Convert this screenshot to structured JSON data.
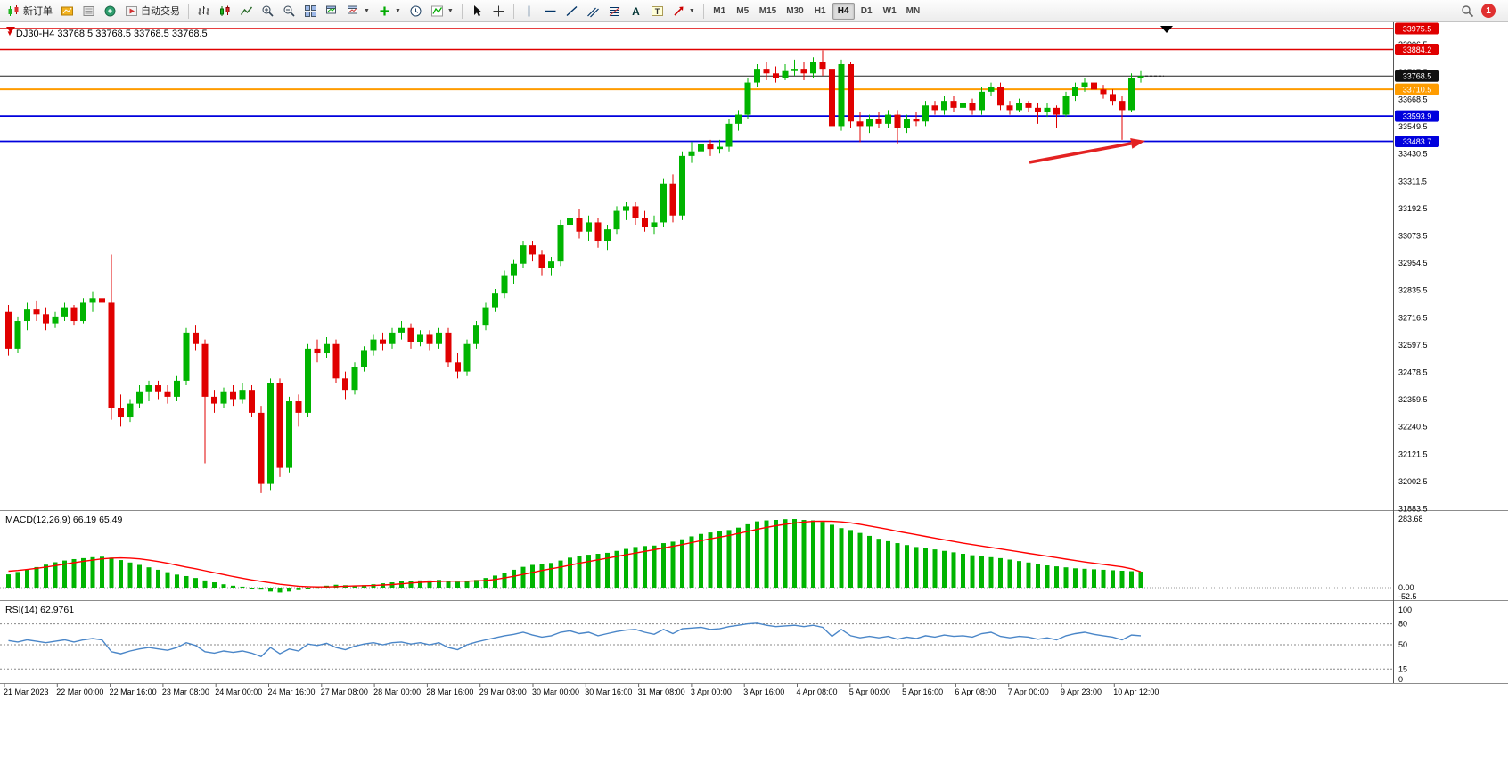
{
  "toolbar": {
    "new_order_label": "新订单",
    "autotrading_label": "自动交易",
    "timeframes": [
      "M1",
      "M5",
      "M15",
      "M30",
      "H1",
      "H4",
      "D1",
      "W1",
      "MN"
    ],
    "active_timeframe": "H4",
    "notification_count": "1"
  },
  "chart": {
    "symbol_label": "DJ30-H4",
    "ohlc": "33768.5 33768.5 33768.5 33768.5"
  },
  "chart_data": {
    "type": "candlestick",
    "symbol": "DJ30",
    "timeframe": "H4",
    "price_axis_ticks": [
      33906.5,
      33787.5,
      33668.5,
      33549.5,
      33430.5,
      33311.5,
      33192.5,
      33073.5,
      32954.5,
      32835.5,
      32716.5,
      32597.5,
      32478.5,
      32359.5,
      32240.5,
      32121.5,
      32002.5,
      31883.5
    ],
    "badges": [
      {
        "price": 33975.5,
        "label": "33975.5",
        "color": "#e00000"
      },
      {
        "price": 33884.2,
        "label": "33884.2",
        "color": "#e00000"
      },
      {
        "price": 33768.5,
        "label": "33768.5",
        "color": "#101010"
      },
      {
        "price": 33710.5,
        "label": "33710.5",
        "color": "#ff9c00"
      },
      {
        "price": 33593.9,
        "label": "33593.9",
        "color": "#0000dd"
      },
      {
        "price": 33483.7,
        "label": "33483.7",
        "color": "#0000dd"
      }
    ],
    "hlines": [
      {
        "price": 33975.5,
        "color": "#e00000",
        "w": 1.5
      },
      {
        "price": 33884.2,
        "color": "#e00000",
        "w": 1.5
      },
      {
        "price": 33768.5,
        "color": "#202020",
        "w": 1
      },
      {
        "price": 33710.5,
        "color": "#ff9c00",
        "w": 2
      },
      {
        "price": 33593.9,
        "color": "#0000dd",
        "w": 1.8
      },
      {
        "price": 33483.7,
        "color": "#0000dd",
        "w": 1.8
      }
    ],
    "candles": [
      [
        32740,
        32770,
        32550,
        32580
      ],
      [
        32580,
        32720,
        32560,
        32700
      ],
      [
        32700,
        32780,
        32660,
        32750
      ],
      [
        32750,
        32790,
        32700,
        32730
      ],
      [
        32730,
        32760,
        32660,
        32690
      ],
      [
        32690,
        32740,
        32670,
        32720
      ],
      [
        32720,
        32780,
        32700,
        32760
      ],
      [
        32760,
        32770,
        32680,
        32700
      ],
      [
        32700,
        32800,
        32690,
        32780
      ],
      [
        32780,
        32830,
        32740,
        32800
      ],
      [
        32800,
        32840,
        32760,
        32780
      ],
      [
        32780,
        32990,
        32270,
        32320
      ],
      [
        32320,
        32380,
        32240,
        32280
      ],
      [
        32280,
        32360,
        32260,
        32340
      ],
      [
        32340,
        32420,
        32320,
        32390
      ],
      [
        32390,
        32440,
        32350,
        32420
      ],
      [
        32420,
        32440,
        32360,
        32390
      ],
      [
        32390,
        32420,
        32340,
        32370
      ],
      [
        32370,
        32460,
        32350,
        32440
      ],
      [
        32440,
        32670,
        32420,
        32650
      ],
      [
        32650,
        32680,
        32570,
        32600
      ],
      [
        32600,
        32620,
        32080,
        32370
      ],
      [
        32370,
        32400,
        32300,
        32340
      ],
      [
        32340,
        32410,
        32320,
        32390
      ],
      [
        32390,
        32420,
        32330,
        32360
      ],
      [
        32360,
        32430,
        32340,
        32400
      ],
      [
        32400,
        32420,
        32280,
        32300
      ],
      [
        32300,
        32330,
        31950,
        31990
      ],
      [
        31990,
        32450,
        31960,
        32430
      ],
      [
        32430,
        32450,
        32020,
        32060
      ],
      [
        32060,
        32370,
        32040,
        32350
      ],
      [
        32350,
        32380,
        32240,
        32300
      ],
      [
        32300,
        32600,
        32280,
        32580
      ],
      [
        32580,
        32620,
        32520,
        32560
      ],
      [
        32560,
        32630,
        32540,
        32600
      ],
      [
        32600,
        32620,
        32430,
        32450
      ],
      [
        32450,
        32480,
        32360,
        32400
      ],
      [
        32400,
        32520,
        32380,
        32500
      ],
      [
        32500,
        32590,
        32480,
        32570
      ],
      [
        32570,
        32640,
        32550,
        32620
      ],
      [
        32620,
        32650,
        32570,
        32600
      ],
      [
        32600,
        32670,
        32580,
        32650
      ],
      [
        32650,
        32700,
        32620,
        32670
      ],
      [
        32670,
        32690,
        32580,
        32610
      ],
      [
        32610,
        32660,
        32590,
        32640
      ],
      [
        32640,
        32660,
        32570,
        32600
      ],
      [
        32600,
        32670,
        32580,
        32650
      ],
      [
        32650,
        32670,
        32500,
        32520
      ],
      [
        32520,
        32560,
        32450,
        32480
      ],
      [
        32480,
        32620,
        32460,
        32600
      ],
      [
        32600,
        32700,
        32580,
        32680
      ],
      [
        32680,
        32780,
        32660,
        32760
      ],
      [
        32760,
        32840,
        32740,
        32820
      ],
      [
        32820,
        32920,
        32800,
        32900
      ],
      [
        32900,
        32970,
        32860,
        32950
      ],
      [
        32950,
        33050,
        32930,
        33030
      ],
      [
        33030,
        33050,
        32960,
        32990
      ],
      [
        32990,
        33010,
        32900,
        32930
      ],
      [
        32930,
        32980,
        32900,
        32960
      ],
      [
        32960,
        33140,
        32940,
        33120
      ],
      [
        33120,
        33180,
        33090,
        33150
      ],
      [
        33150,
        33190,
        33060,
        33090
      ],
      [
        33090,
        33160,
        33050,
        33130
      ],
      [
        33130,
        33150,
        33020,
        33050
      ],
      [
        33050,
        33120,
        33010,
        33100
      ],
      [
        33100,
        33200,
        33080,
        33180
      ],
      [
        33180,
        33220,
        33140,
        33200
      ],
      [
        33200,
        33220,
        33120,
        33150
      ],
      [
        33150,
        33180,
        33090,
        33110
      ],
      [
        33110,
        33160,
        33080,
        33130
      ],
      [
        33130,
        33320,
        33110,
        33300
      ],
      [
        33300,
        33340,
        33130,
        33160
      ],
      [
        33160,
        33440,
        33140,
        33420
      ],
      [
        33420,
        33480,
        33390,
        33440
      ],
      [
        33440,
        33500,
        33410,
        33470
      ],
      [
        33470,
        33490,
        33420,
        33450
      ],
      [
        33450,
        33490,
        33430,
        33460
      ],
      [
        33460,
        33580,
        33440,
        33560
      ],
      [
        33560,
        33620,
        33530,
        33600
      ],
      [
        33600,
        33760,
        33580,
        33740
      ],
      [
        33740,
        33820,
        33720,
        33800
      ],
      [
        33800,
        33830,
        33750,
        33780
      ],
      [
        33780,
        33810,
        33740,
        33760
      ],
      [
        33760,
        33820,
        33750,
        33790
      ],
      [
        33790,
        33840,
        33770,
        33800
      ],
      [
        33800,
        33830,
        33750,
        33780
      ],
      [
        33780,
        33850,
        33760,
        33830
      ],
      [
        33830,
        33880,
        33770,
        33800
      ],
      [
        33800,
        33810,
        33520,
        33550
      ],
      [
        33550,
        33840,
        33530,
        33820
      ],
      [
        33820,
        33830,
        33540,
        33570
      ],
      [
        33570,
        33610,
        33480,
        33550
      ],
      [
        33550,
        33600,
        33520,
        33580
      ],
      [
        33580,
        33610,
        33540,
        33560
      ],
      [
        33560,
        33620,
        33540,
        33600
      ],
      [
        33600,
        33620,
        33470,
        33540
      ],
      [
        33540,
        33600,
        33520,
        33580
      ],
      [
        33580,
        33610,
        33550,
        33570
      ],
      [
        33570,
        33660,
        33550,
        33640
      ],
      [
        33640,
        33660,
        33600,
        33620
      ],
      [
        33620,
        33680,
        33600,
        33660
      ],
      [
        33660,
        33680,
        33610,
        33630
      ],
      [
        33630,
        33670,
        33610,
        33650
      ],
      [
        33650,
        33670,
        33600,
        33620
      ],
      [
        33620,
        33720,
        33600,
        33700
      ],
      [
        33700,
        33740,
        33680,
        33720
      ],
      [
        33720,
        33740,
        33620,
        33640
      ],
      [
        33640,
        33660,
        33600,
        33620
      ],
      [
        33620,
        33670,
        33610,
        33650
      ],
      [
        33650,
        33660,
        33610,
        33630
      ],
      [
        33630,
        33650,
        33560,
        33610
      ],
      [
        33610,
        33650,
        33590,
        33630
      ],
      [
        33630,
        33640,
        33540,
        33600
      ],
      [
        33600,
        33700,
        33590,
        33680
      ],
      [
        33680,
        33740,
        33660,
        33720
      ],
      [
        33720,
        33760,
        33700,
        33740
      ],
      [
        33740,
        33760,
        33690,
        33710
      ],
      [
        33710,
        33730,
        33670,
        33690
      ],
      [
        33690,
        33710,
        33640,
        33660
      ],
      [
        33660,
        33680,
        33490,
        33620
      ],
      [
        33620,
        33780,
        33610,
        33760
      ],
      [
        33760,
        33790,
        33740,
        33768.5
      ]
    ],
    "macd": {
      "title": "MACD(12,26,9)",
      "current": "66.19 65.49",
      "axis_max_label": "283.68",
      "axis_zero_label": "0.00",
      "axis_min_label": "-52.5",
      "axis_max": 283.68,
      "axis_min": -52.5,
      "histogram": [
        55,
        65,
        75,
        85,
        95,
        105,
        112,
        118,
        122,
        126,
        128,
        124,
        114,
        104,
        94,
        84,
        74,
        64,
        54,
        48,
        40,
        30,
        22,
        14,
        8,
        4,
        0,
        -8,
        -16,
        -20,
        -16,
        -10,
        -4,
        3,
        8,
        12,
        10,
        8,
        10,
        14,
        18,
        22,
        26,
        28,
        30,
        30,
        32,
        28,
        24,
        26,
        32,
        40,
        50,
        62,
        74,
        86,
        94,
        98,
        102,
        112,
        124,
        130,
        136,
        140,
        144,
        152,
        160,
        168,
        172,
        174,
        184,
        190,
        200,
        212,
        222,
        228,
        232,
        238,
        248,
        262,
        274,
        278,
        280,
        283,
        283.68,
        280,
        278,
        272,
        260,
        246,
        238,
        226,
        214,
        202,
        192,
        184,
        176,
        168,
        164,
        158,
        152,
        146,
        140,
        134,
        130,
        126,
        122,
        116,
        110,
        104,
        98,
        92,
        88,
        84,
        80,
        78,
        76,
        74,
        72,
        70,
        68,
        66.19
      ],
      "signal": [
        68,
        71,
        75,
        80,
        85,
        91,
        97,
        103,
        109,
        114,
        119,
        122,
        123,
        122,
        119,
        114,
        108,
        101,
        93,
        85,
        78,
        70,
        62,
        54,
        46,
        39,
        32,
        26,
        20,
        14,
        10,
        6,
        4,
        3,
        3,
        4,
        6,
        7,
        8,
        9,
        11,
        13,
        16,
        19,
        22,
        24,
        26,
        27,
        27,
        27,
        28,
        30,
        34,
        40,
        47,
        55,
        63,
        71,
        78,
        85,
        93,
        101,
        108,
        115,
        122,
        129,
        136,
        143,
        150,
        157,
        164,
        171,
        178,
        186,
        194,
        202,
        209,
        216,
        224,
        232,
        241,
        249,
        256,
        262,
        267,
        271,
        274,
        275,
        274,
        272,
        268,
        262,
        255,
        248,
        241,
        233,
        226,
        219,
        212,
        205,
        198,
        191,
        184,
        178,
        172,
        166,
        160,
        154,
        148,
        142,
        136,
        130,
        124,
        118,
        112,
        106,
        101,
        96,
        91,
        86,
        78,
        65.49
      ]
    },
    "rsi": {
      "title": "RSI(14)",
      "current": "62.9761",
      "levels": [
        80,
        50,
        15
      ],
      "axis_labels": [
        100,
        80,
        50,
        15,
        0
      ],
      "series": [
        56,
        54,
        57,
        55,
        53,
        55,
        57,
        54,
        57,
        59,
        57,
        40,
        37,
        41,
        44,
        46,
        44,
        42,
        46,
        53,
        49,
        40,
        38,
        41,
        39,
        41,
        38,
        33,
        46,
        37,
        44,
        41,
        51,
        49,
        52,
        46,
        43,
        48,
        51,
        53,
        50,
        53,
        54,
        51,
        53,
        50,
        53,
        46,
        43,
        50,
        54,
        57,
        60,
        63,
        65,
        68,
        64,
        61,
        63,
        68,
        70,
        66,
        68,
        63,
        66,
        69,
        71,
        72,
        68,
        65,
        72,
        66,
        73,
        74,
        75,
        72,
        73,
        76,
        78,
        80,
        81,
        78,
        76,
        77,
        78,
        76,
        78,
        75,
        62,
        72,
        63,
        60,
        62,
        60,
        62,
        58,
        61,
        59,
        63,
        61,
        64,
        62,
        63,
        61,
        66,
        68,
        62,
        60,
        62,
        61,
        58,
        60,
        57,
        63,
        66,
        68,
        65,
        63,
        61,
        57,
        64,
        62.98
      ]
    },
    "time_labels": [
      "21 Mar 2023",
      "22 Mar 00:00",
      "22 Mar 16:00",
      "23 Mar 08:00",
      "24 Mar 00:00",
      "24 Mar 16:00",
      "27 Mar 08:00",
      "28 Mar 00:00",
      "28 Mar 16:00",
      "29 Mar 08:00",
      "30 Mar 00:00",
      "30 Mar 16:00",
      "31 Mar 08:00",
      "3 Apr 00:00",
      "3 Apr 16:00",
      "4 Apr 08:00",
      "5 Apr 00:00",
      "5 Apr 16:00",
      "6 Apr 08:00",
      "7 Apr 00:00",
      "9 Apr 23:00",
      "10 Apr 12:00"
    ],
    "colors": {
      "bull": "#00b400",
      "bear": "#e00000",
      "macd_hist": "#00b400",
      "macd_signal": "#ff0000",
      "rsi_line": "#4a86c8",
      "arrow": "#e32222",
      "axis_text": "#000000"
    },
    "arrow_annotation": {
      "tail": [
        1155,
        157
      ],
      "head": [
        1285,
        133
      ]
    }
  }
}
